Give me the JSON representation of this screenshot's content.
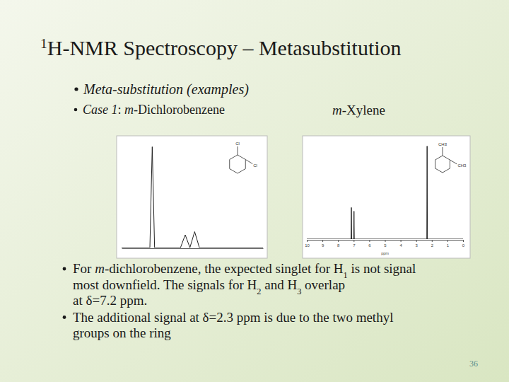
{
  "slide": {
    "title": [
      {
        "text": "1",
        "sup": true
      },
      {
        "text": "H-NMR Spectroscopy – Metasubstitution"
      }
    ],
    "heading": [
      {
        "text": "Meta-substitution (examples)",
        "italic": true
      }
    ],
    "case_label": [
      {
        "text": "Case 1",
        "italic": true
      },
      {
        "text": ": "
      },
      {
        "text": "m",
        "italic": true
      },
      {
        "text": "-Dichlorobenzene"
      }
    ],
    "right_label": [
      {
        "text": "m",
        "italic": true
      },
      {
        "text": "-Xylene"
      }
    ],
    "bullets": [
      [
        [
          {
            "text": "For "
          },
          {
            "text": "m",
            "italic": true
          },
          {
            "text": "-dichlorobenzene, the expected singlet for H"
          },
          {
            "text": "1",
            "sub": true
          },
          {
            "text": " is not signal"
          }
        ],
        [
          {
            "text": "most downfield. The signals for H"
          },
          {
            "text": "2",
            "sub": true
          },
          {
            "text": " and H"
          },
          {
            "text": "3",
            "sub": true
          },
          {
            "text": " overlap"
          }
        ],
        [
          {
            "text": "at δ=7.2 ppm."
          }
        ]
      ],
      [
        [
          {
            "text": "The additional signal at δ=2.3 ppm is due to the two methyl"
          }
        ],
        [
          {
            "text": "groups on the ring"
          }
        ]
      ]
    ],
    "page": "36"
  },
  "chart_data": [
    {
      "type": "line",
      "x": [
        7.5,
        7.38,
        7.37,
        7.36,
        7.25,
        7.23,
        7.21,
        7.19,
        7.17,
        6.9
      ],
      "values": [
        0,
        0,
        0.95,
        0,
        0,
        0.12,
        0,
        0.15,
        0,
        0
      ],
      "xlim": [
        7.5,
        6.9
      ],
      "ylim": [
        0,
        1
      ],
      "tick_labels": false,
      "color": "#222222",
      "annotations": [
        "Cl",
        "Cl"
      ]
    },
    {
      "type": "line",
      "x": [
        10,
        7.17,
        7.15,
        7.13,
        7.0,
        6.98,
        6.96,
        2.32,
        2.3,
        2.28,
        0
      ],
      "values": [
        0,
        0,
        0.34,
        0,
        0,
        0.3,
        0,
        0,
        1.0,
        0,
        0
      ],
      "xlim": [
        10,
        0
      ],
      "ylim": [
        0,
        1.05
      ],
      "xticks": [
        10,
        9,
        8,
        7,
        6,
        5,
        4,
        3,
        2,
        1,
        0
      ],
      "xlabel": "ppm",
      "tick_labels": "x",
      "color": "#222222",
      "annotations": [
        "CH3",
        "CH3"
      ]
    }
  ]
}
